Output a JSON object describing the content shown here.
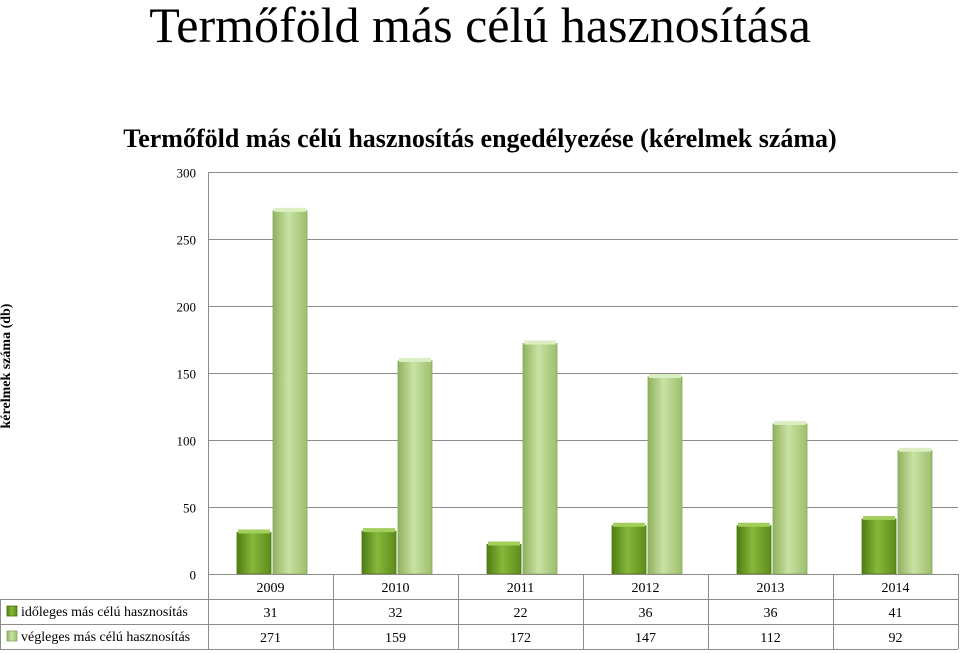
{
  "slide_title": "Termőföld más célú hasznosítása",
  "chart_data": {
    "type": "bar",
    "title": "Termőföld más célú hasznosítás engedélyezése (kérelmek száma)",
    "ylabel": "kérelmek száma (db)",
    "xlabel": "",
    "ylim": [
      0,
      300
    ],
    "yticks": [
      0,
      50,
      100,
      150,
      200,
      250,
      300
    ],
    "grid": true,
    "legend": "data-table",
    "categories": [
      "2009",
      "2010",
      "2011",
      "2012",
      "2013",
      "2014"
    ],
    "series": [
      {
        "name": "időleges más célú hasznosítás",
        "values": [
          31,
          32,
          22,
          36,
          36,
          41
        ],
        "color": "#77a72a"
      },
      {
        "name": "végleges más célú hasznosítás",
        "values": [
          271,
          159,
          172,
          147,
          112,
          92
        ],
        "color": "#b3d38a"
      }
    ]
  }
}
